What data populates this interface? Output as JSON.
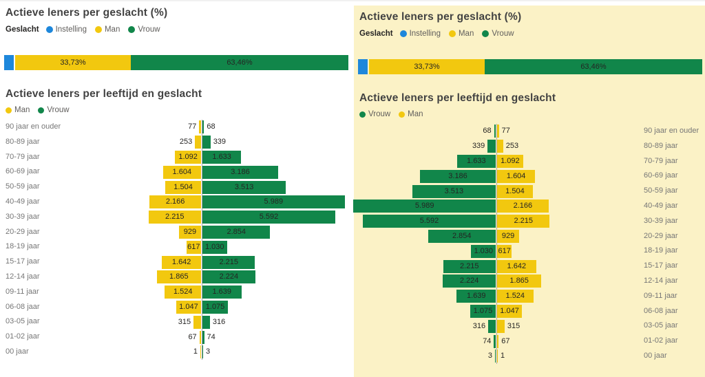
{
  "colors": {
    "instelling_blue": "#1E87DB",
    "man_yellow": "#F2C80F",
    "vrouw_green": "#11864A",
    "right_panel_bg": "#FBF2C6",
    "value_label_color": "#252423",
    "axis_label_color": "#767676"
  },
  "gender_chart": {
    "title": "Actieve leners per geslacht (%)",
    "legend_title": "Geslacht",
    "legend": [
      "Instelling",
      "Man",
      "Vrouw"
    ]
  },
  "age_chart": {
    "title": "Actieve leners per leeftijd en geslacht",
    "legend_left_panel": [
      "Man",
      "Vrouw"
    ],
    "legend_right_panel": [
      "Vrouw",
      "Man"
    ]
  },
  "chart_data": [
    {
      "type": "bar",
      "subtype": "horizontal-stacked-100pct",
      "title": "Actieve leners per geslacht (%)",
      "categories": [
        "Instelling",
        "Man",
        "Vrouw"
      ],
      "values": [
        2.81,
        33.73,
        63.46
      ],
      "value_labels": [
        "",
        "33,73%",
        "63,46%"
      ],
      "legend_position": "top"
    },
    {
      "type": "bar",
      "subtype": "population-pyramid",
      "title": "Actieve leners per leeftijd en geslacht",
      "categories": [
        "90 jaar en ouder",
        "80-89 jaar",
        "70-79 jaar",
        "60-69 jaar",
        "50-59 jaar",
        "40-49 jaar",
        "30-39 jaar",
        "20-29 jaar",
        "18-19 jaar",
        "15-17 jaar",
        "12-14 jaar",
        "09-11 jaar",
        "06-08 jaar",
        "03-05 jaar",
        "01-02 jaar",
        "00 jaar"
      ],
      "series": [
        {
          "name": "Man",
          "values": [
            77,
            253,
            1092,
            1604,
            1504,
            2166,
            2215,
            929,
            617,
            1642,
            1865,
            1524,
            1047,
            315,
            67,
            1
          ],
          "labels": [
            "77",
            "253",
            "1.092",
            "1.604",
            "1.504",
            "2.166",
            "2.215",
            "929",
            "617",
            "1.642",
            "1.865",
            "1.524",
            "1.047",
            "315",
            "67",
            "1"
          ]
        },
        {
          "name": "Vrouw",
          "values": [
            68,
            339,
            1633,
            3186,
            3513,
            5989,
            5592,
            2854,
            1030,
            2215,
            2224,
            1639,
            1075,
            316,
            74,
            3
          ],
          "labels": [
            "68",
            "339",
            "1.633",
            "3.186",
            "3.513",
            "5.989",
            "5.592",
            "2.854",
            "1.030",
            "2.215",
            "2.224",
            "1.639",
            "1.075",
            "316",
            "74",
            "3"
          ]
        }
      ]
    }
  ]
}
